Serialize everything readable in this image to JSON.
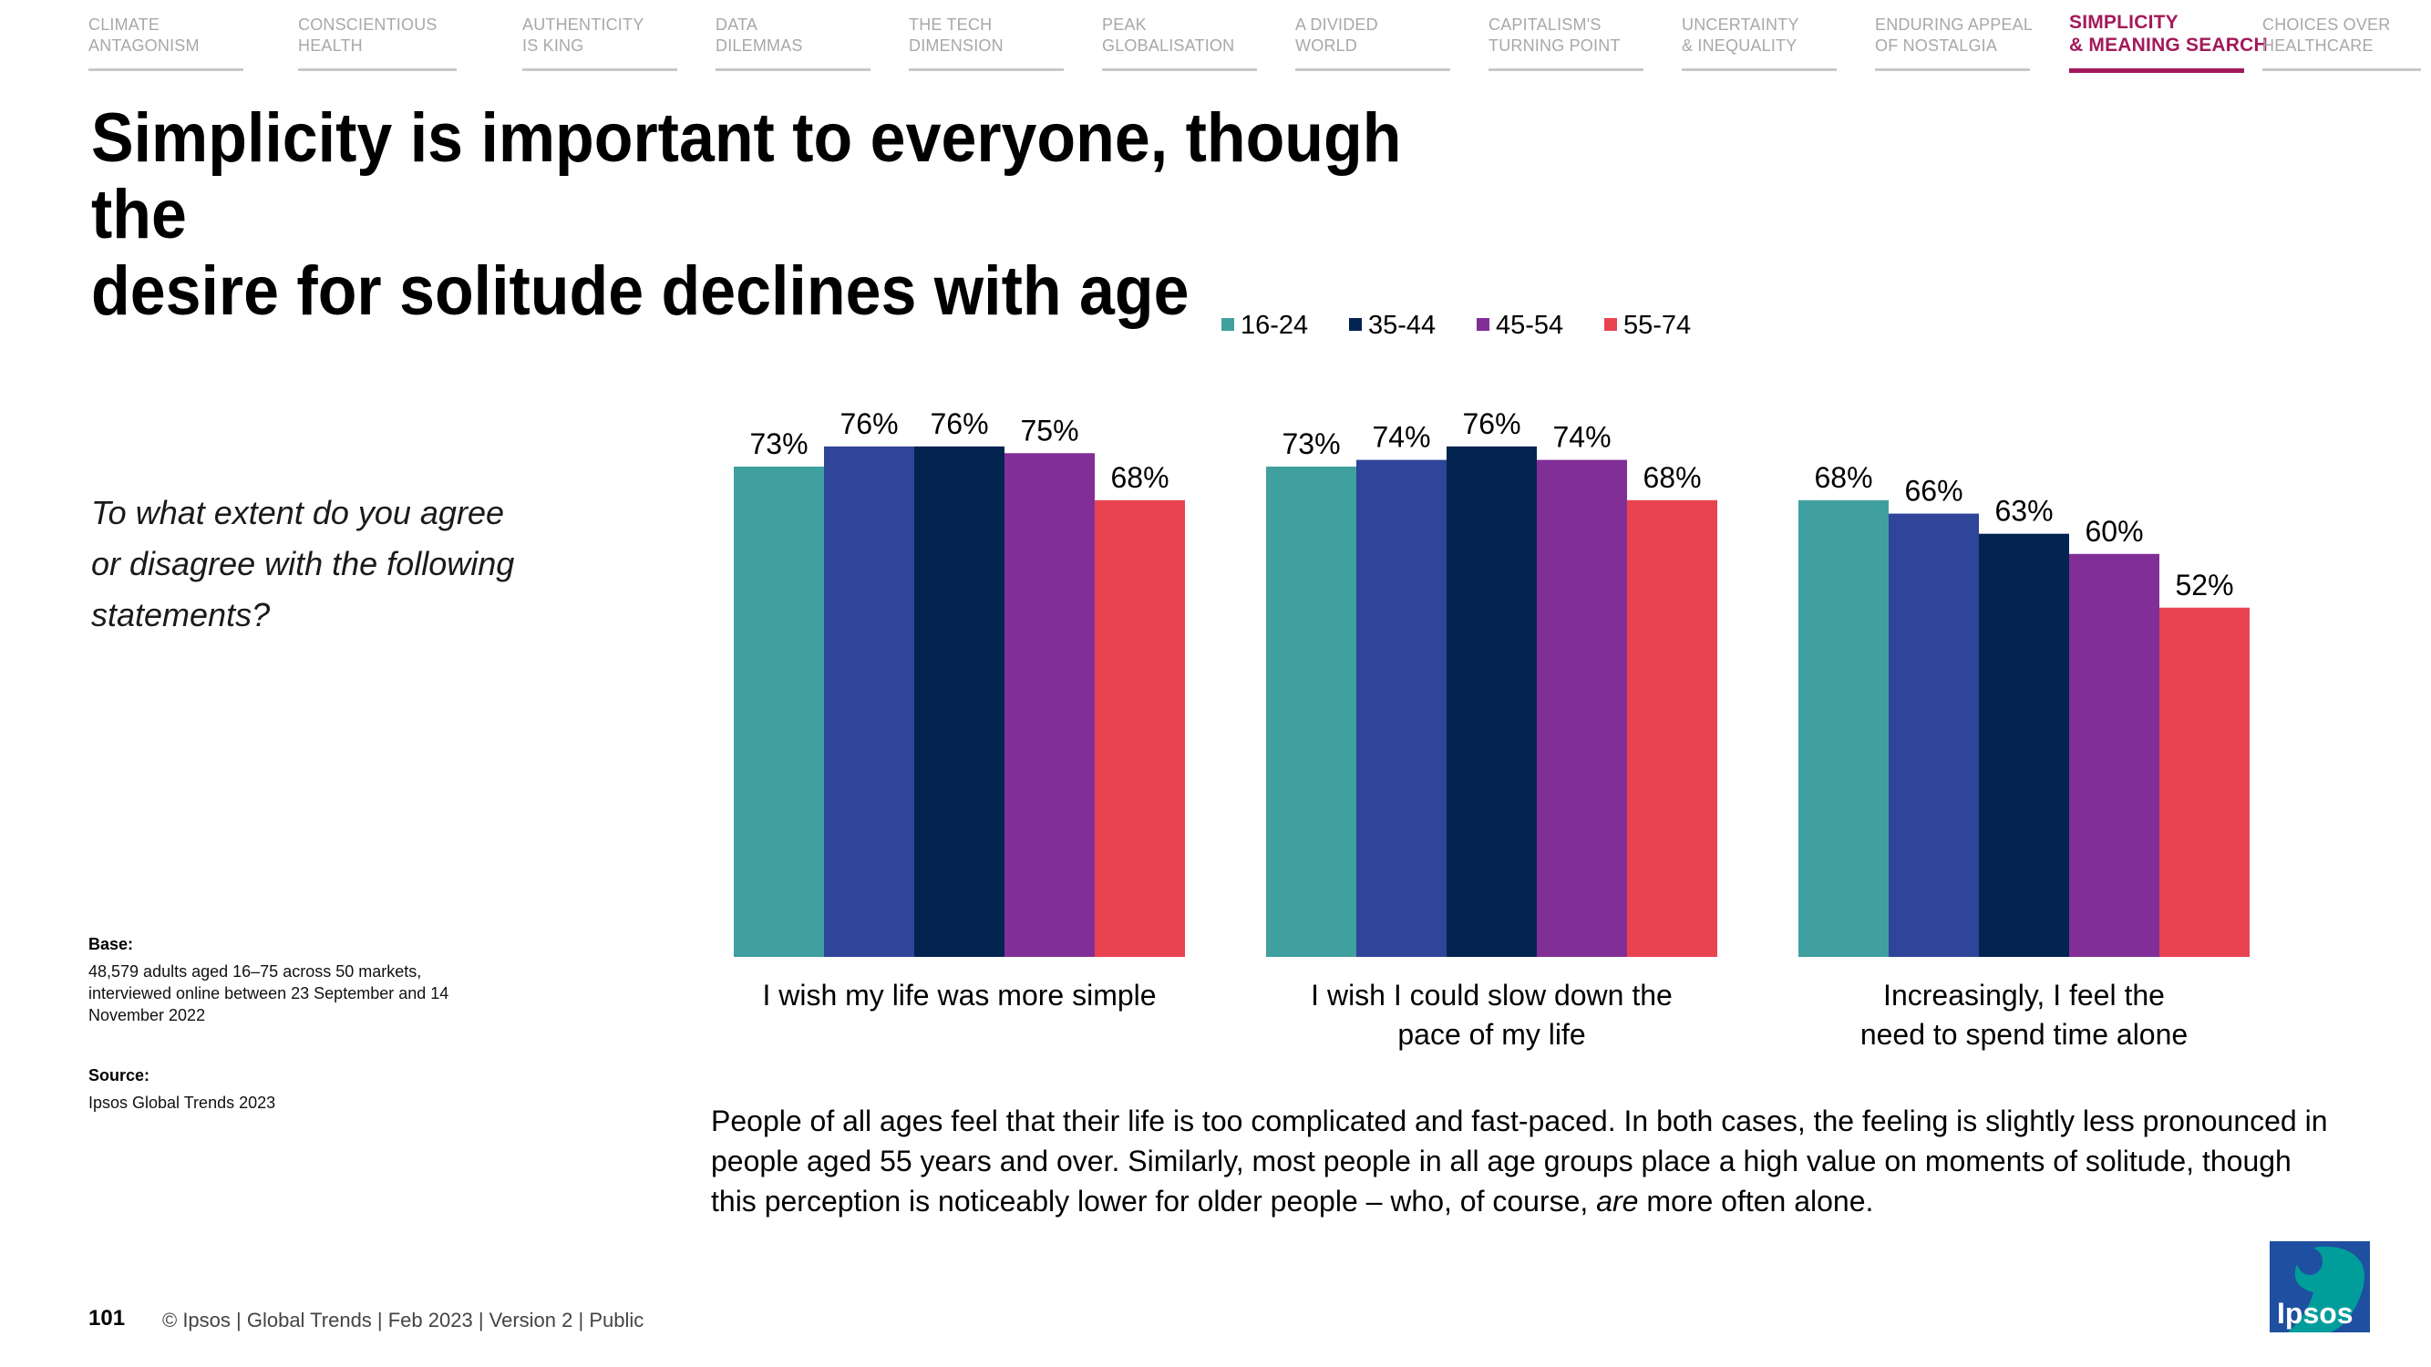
{
  "nav": {
    "items": [
      {
        "line1": "Climate",
        "line2": "Antagonism"
      },
      {
        "line1": "Conscientious",
        "line2": "Health"
      },
      {
        "line1": "Authenticity",
        "line2": "is King"
      },
      {
        "line1": "Data",
        "line2": "Dilemmas"
      },
      {
        "line1": "The Tech",
        "line2": "Dimension"
      },
      {
        "line1": "Peak",
        "line2": "Globalisation"
      },
      {
        "line1": "A Divided",
        "line2": "World"
      },
      {
        "line1": "Capitalism's",
        "line2": "Turning Point"
      },
      {
        "line1": "Uncertainty",
        "line2": "& Inequality"
      },
      {
        "line1": "Enduring Appeal",
        "line2": "of Nostalgia"
      },
      {
        "line1": "Simplicity",
        "line2": "& Meaning Search"
      },
      {
        "line1": "Choices Over",
        "line2": "Healthcare"
      }
    ],
    "active_color": "#a3195b"
  },
  "title": {
    "line1": "Simplicity is important to everyone, though the",
    "line2": "desire for solitude declines with age"
  },
  "question": "To what extent do you agree or disagree with the following statements?",
  "base": {
    "label": "Base:",
    "text": "48,579 adults aged 16–75 across 50 markets, interviewed online between 23 September and 14 November 2022"
  },
  "source": {
    "label": "Source:",
    "text": "Ipsos Global Trends 2023"
  },
  "summary": {
    "before": "People of all ages feel that their life is too complicated and fast-paced. In both cases, the feeling is slightly less pronounced in people aged 55 years and over. Similarly, most people in all age groups place a high value on moments of solitude, though this perception is noticeably lower for older people – who, of course, ",
    "emphasis": "are",
    "after": " more often alone."
  },
  "footer": {
    "page_number": "101",
    "text": "© Ipsos | Global Trends | Feb 2023 | Version 2 | Public"
  },
  "logo": {
    "text": "Ipsos",
    "color": "#009d9a",
    "bg": "#1e4fa0"
  },
  "chart_data": {
    "type": "bar",
    "title": "",
    "xlabel": "",
    "ylabel": "",
    "ylim": [
      0,
      80
    ],
    "legend_position": "top",
    "categories": [
      [
        "I wish my life was more simple"
      ],
      [
        "I wish I could slow down the",
        "pace of my life"
      ],
      [
        "Increasingly, I feel the",
        "need to spend time alone"
      ]
    ],
    "series": [
      {
        "name": "16-24",
        "color": "#40a09f",
        "values": [
          73,
          73,
          68
        ]
      },
      {
        "name": "",
        "color": "#2e4599",
        "values": [
          76,
          74,
          66
        ]
      },
      {
        "name": "35-44",
        "color": "#032350",
        "values": [
          76,
          76,
          63
        ]
      },
      {
        "name": "45-54",
        "color": "#822e97",
        "values": [
          75,
          74,
          60
        ]
      },
      {
        "name": "55-74",
        "color": "#e94352",
        "values": [
          68,
          68,
          52
        ]
      }
    ],
    "value_suffix": "%"
  }
}
